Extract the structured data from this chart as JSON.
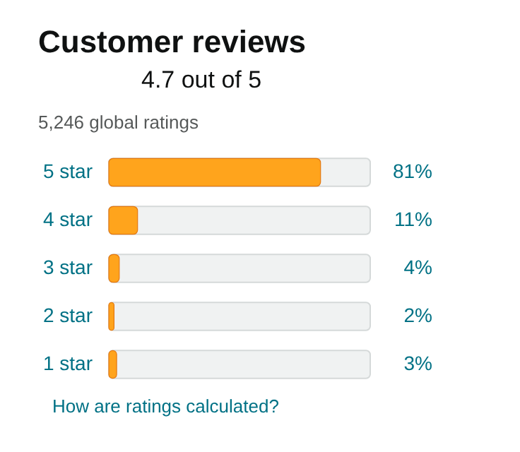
{
  "chart_data": {
    "type": "bar",
    "orientation": "horizontal",
    "title": "Customer reviews",
    "subtitle": "4.7 out of 5",
    "annotations": [
      "5,246 global ratings",
      "How are ratings calculated?"
    ],
    "categories": [
      "5 star",
      "4 star",
      "3 star",
      "2 star",
      "1 star"
    ],
    "values": [
      81,
      11,
      4,
      2,
      3
    ],
    "value_labels": [
      "81%",
      "11%",
      "4%",
      "2%",
      "3%"
    ],
    "color": "#ffa41c",
    "xlim": [
      0,
      100
    ],
    "tick_labels": "y",
    "grid": false
  }
}
